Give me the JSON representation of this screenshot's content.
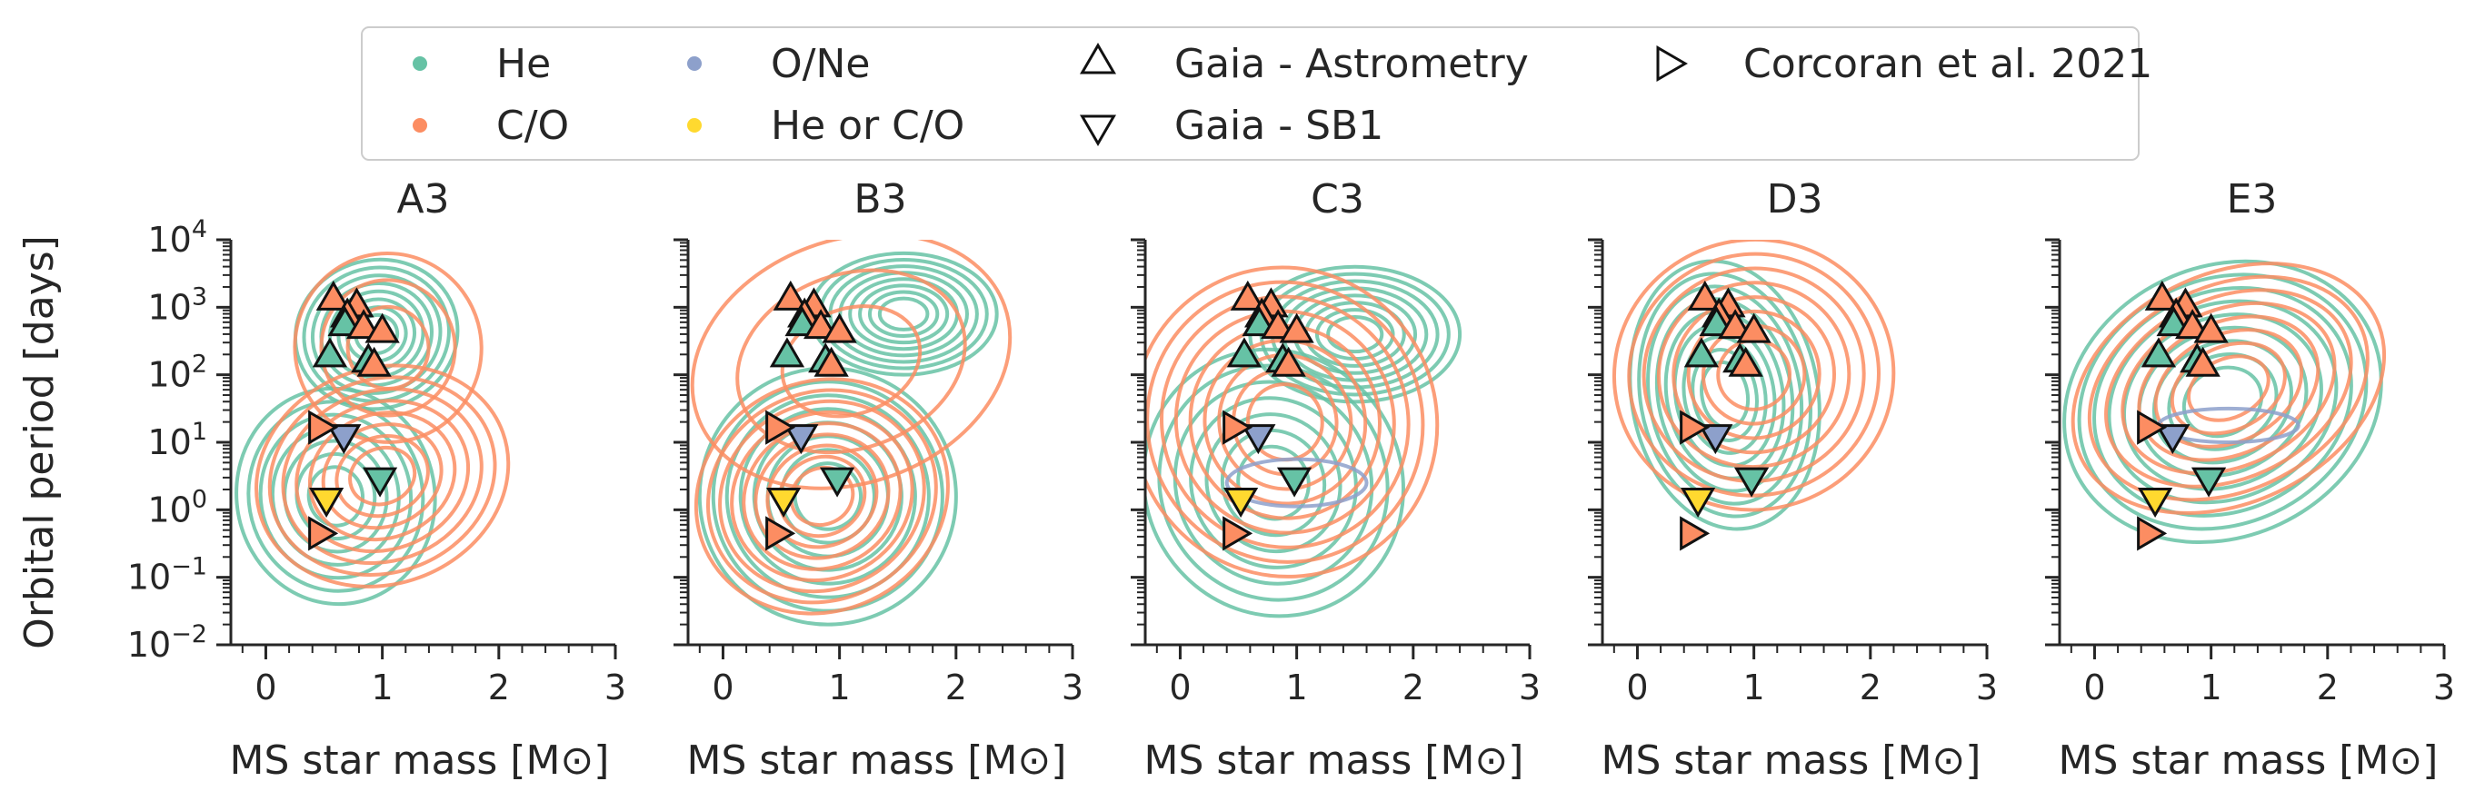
{
  "chart_data": {
    "type": "scatter",
    "ylabel": "Orbital period [days]",
    "xlabel": "MS star mass [M⊙]",
    "xlim": [
      -0.3,
      3
    ],
    "ylim_log10": [
      -2,
      4
    ],
    "xticks": [
      0,
      1,
      2,
      3
    ],
    "xtick_labels": [
      "0",
      "1",
      "2",
      "3"
    ],
    "yticks": [
      -2,
      -1,
      0,
      1,
      2,
      3,
      4
    ],
    "ytick_labels": [
      {
        "base": "10",
        "exp": "−2"
      },
      {
        "base": "10",
        "exp": "−1"
      },
      {
        "base": "10",
        "exp": "0"
      },
      {
        "base": "10",
        "exp": "1"
      },
      {
        "base": "10",
        "exp": "2"
      },
      {
        "base": "10",
        "exp": "3"
      },
      {
        "base": "10",
        "exp": "4"
      }
    ],
    "colors": {
      "He": "#66c2a5",
      "C/O": "#fc8d62",
      "O/Ne": "#8da0cb",
      "He or C/O": "#ffd92f"
    },
    "legend": {
      "placement": "top-center",
      "items": [
        {
          "label": "He",
          "kind": "dot",
          "color": "#66c2a5"
        },
        {
          "label": "C/O",
          "kind": "dot",
          "color": "#fc8d62"
        },
        {
          "label": "O/Ne",
          "kind": "dot",
          "color": "#8da0cb"
        },
        {
          "label": "He or C/O",
          "kind": "dot",
          "color": "#ffd92f"
        },
        {
          "label": "Gaia - Astrometry",
          "kind": "triangle-up",
          "color": "none"
        },
        {
          "label": "Gaia - SB1",
          "kind": "triangle-down",
          "color": "none"
        },
        {
          "label": "Corcoran et al. 2021",
          "kind": "triangle-right",
          "color": "none"
        }
      ]
    },
    "observations": [
      {
        "source": "Gaia - Astrometry",
        "wd": "C/O",
        "mass": 0.58,
        "logP": 3.1
      },
      {
        "source": "Gaia - Astrometry",
        "wd": "C/O",
        "mass": 0.78,
        "logP": 3.0
      },
      {
        "source": "Gaia - Astrometry",
        "wd": "C/O",
        "mass": 0.7,
        "logP": 2.85
      },
      {
        "source": "Gaia - Astrometry",
        "wd": "He",
        "mass": 0.68,
        "logP": 2.72
      },
      {
        "source": "Gaia - Astrometry",
        "wd": "C/O",
        "mass": 0.84,
        "logP": 2.68
      },
      {
        "source": "Gaia - Astrometry",
        "wd": "C/O",
        "mass": 1.0,
        "logP": 2.62
      },
      {
        "source": "Gaia - Astrometry",
        "wd": "He",
        "mass": 0.55,
        "logP": 2.26
      },
      {
        "source": "Gaia - Astrometry",
        "wd": "He",
        "mass": 0.88,
        "logP": 2.18
      },
      {
        "source": "Gaia - Astrometry",
        "wd": "C/O",
        "mass": 0.93,
        "logP": 2.12
      },
      {
        "source": "Gaia - SB1",
        "wd": "O/Ne",
        "mass": 0.67,
        "logP": 1.12
      },
      {
        "source": "Gaia - SB1",
        "wd": "He",
        "mass": 0.98,
        "logP": 0.48
      },
      {
        "source": "Gaia - SB1",
        "wd": "He or C/O",
        "mass": 0.52,
        "logP": 0.18
      },
      {
        "source": "Corcoran et al. 2021",
        "wd": "C/O",
        "mass": 0.45,
        "logP": 1.22
      },
      {
        "source": "Corcoran et al. 2021",
        "wd": "C/O",
        "mass": 0.45,
        "logP": -0.35
      }
    ],
    "panels": [
      {
        "title": "A3",
        "kde": [
          {
            "wd": "He",
            "cx": 0.95,
            "cy": 2.6,
            "rx": 0.7,
            "ry": 1.1,
            "rot": 15,
            "levels": 8
          },
          {
            "wd": "He",
            "cx": 0.6,
            "cy": 0.2,
            "rx": 0.85,
            "ry": 1.6,
            "rot": 10,
            "levels": 7
          },
          {
            "wd": "C/O",
            "cx": 1.05,
            "cy": 2.4,
            "rx": 0.8,
            "ry": 1.4,
            "rot": 15,
            "levels": 3
          },
          {
            "wd": "C/O",
            "cx": 1.0,
            "cy": 0.5,
            "rx": 1.1,
            "ry": 1.6,
            "rot": 20,
            "levels": 8
          }
        ]
      },
      {
        "title": "B3",
        "kde": [
          {
            "wd": "He",
            "cx": 1.55,
            "cy": 2.9,
            "rx": 0.8,
            "ry": 0.9,
            "rot": 0,
            "levels": 8
          },
          {
            "wd": "He",
            "cx": 0.9,
            "cy": 0.2,
            "rx": 1.1,
            "ry": 1.9,
            "rot": 25,
            "levels": 8
          },
          {
            "wd": "C/O",
            "cx": 1.1,
            "cy": 2.2,
            "rx": 1.4,
            "ry": 1.8,
            "rot": 20,
            "levels": 3
          },
          {
            "wd": "C/O",
            "cx": 0.85,
            "cy": 0.2,
            "rx": 1.1,
            "ry": 1.7,
            "rot": 25,
            "levels": 9
          }
        ]
      },
      {
        "title": "C3",
        "kde": [
          {
            "wd": "He",
            "cx": 1.5,
            "cy": 2.6,
            "rx": 0.9,
            "ry": 1.0,
            "rot": 0,
            "levels": 8
          },
          {
            "wd": "He",
            "cx": 0.8,
            "cy": 0.4,
            "rx": 1.1,
            "ry": 2.0,
            "rot": 30,
            "levels": 7
          },
          {
            "wd": "C/O",
            "cx": 0.9,
            "cy": 1.3,
            "rx": 1.3,
            "ry": 2.3,
            "rot": 25,
            "levels": 9
          },
          {
            "wd": "O/Ne",
            "cx": 1.0,
            "cy": 0.4,
            "rx": 0.6,
            "ry": 0.35,
            "rot": 0,
            "levels": 1
          }
        ]
      },
      {
        "title": "D3",
        "kde": [
          {
            "wd": "He",
            "cx": 0.75,
            "cy": 1.7,
            "rx": 0.8,
            "ry": 2.0,
            "rot": 10,
            "levels": 9
          },
          {
            "wd": "C/O",
            "cx": 1.0,
            "cy": 2.0,
            "rx": 1.2,
            "ry": 2.0,
            "rot": 10,
            "levels": 8
          }
        ]
      },
      {
        "title": "E3",
        "kde": [
          {
            "wd": "He",
            "cx": 1.1,
            "cy": 1.6,
            "rx": 1.4,
            "ry": 2.0,
            "rot": 25,
            "levels": 9
          },
          {
            "wd": "C/O",
            "cx": 1.15,
            "cy": 1.8,
            "rx": 1.4,
            "ry": 1.7,
            "rot": 25,
            "levels": 8
          },
          {
            "wd": "O/Ne",
            "cx": 1.15,
            "cy": 1.25,
            "rx": 0.6,
            "ry": 0.25,
            "rot": 0,
            "levels": 1
          }
        ]
      }
    ]
  }
}
